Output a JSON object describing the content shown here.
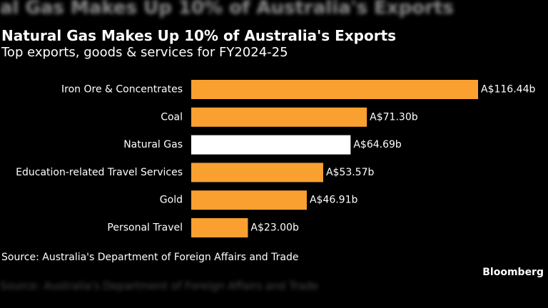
{
  "blurred_header_text": "al Gas Makes Up 10% of Australia's Exports",
  "blurred_footer_text": "Source: Australia's Department of Foreign Affairs and Trade",
  "chart_data": {
    "type": "bar",
    "orientation": "horizontal",
    "title": "Natural Gas Makes Up 10% of Australia's Exports",
    "subtitle": "Top exports, goods & services for FY2024-25",
    "source": "Source: Australia's Department of Foreign Affairs and Trade",
    "brand": "Bloomberg",
    "categories": [
      "Iron Ore & Concentrates",
      "Coal",
      "Natural Gas",
      "Education-related Travel Services",
      "Gold",
      "Personal Travel"
    ],
    "values": [
      116.44,
      71.3,
      64.69,
      53.57,
      46.91,
      23.0
    ],
    "value_labels": [
      "A$116.44b",
      "A$71.30b",
      "A$64.69b",
      "A$53.57b",
      "A$46.91b",
      "A$23.00b"
    ],
    "bar_colors": [
      "#f9a030",
      "#f9a030",
      "#ffffff",
      "#f9a030",
      "#f9a030",
      "#f9a030"
    ],
    "highlight_color": "#ffffff",
    "accent_color": "#f9a030",
    "background": "#000000",
    "grid": false,
    "legend": "none"
  }
}
